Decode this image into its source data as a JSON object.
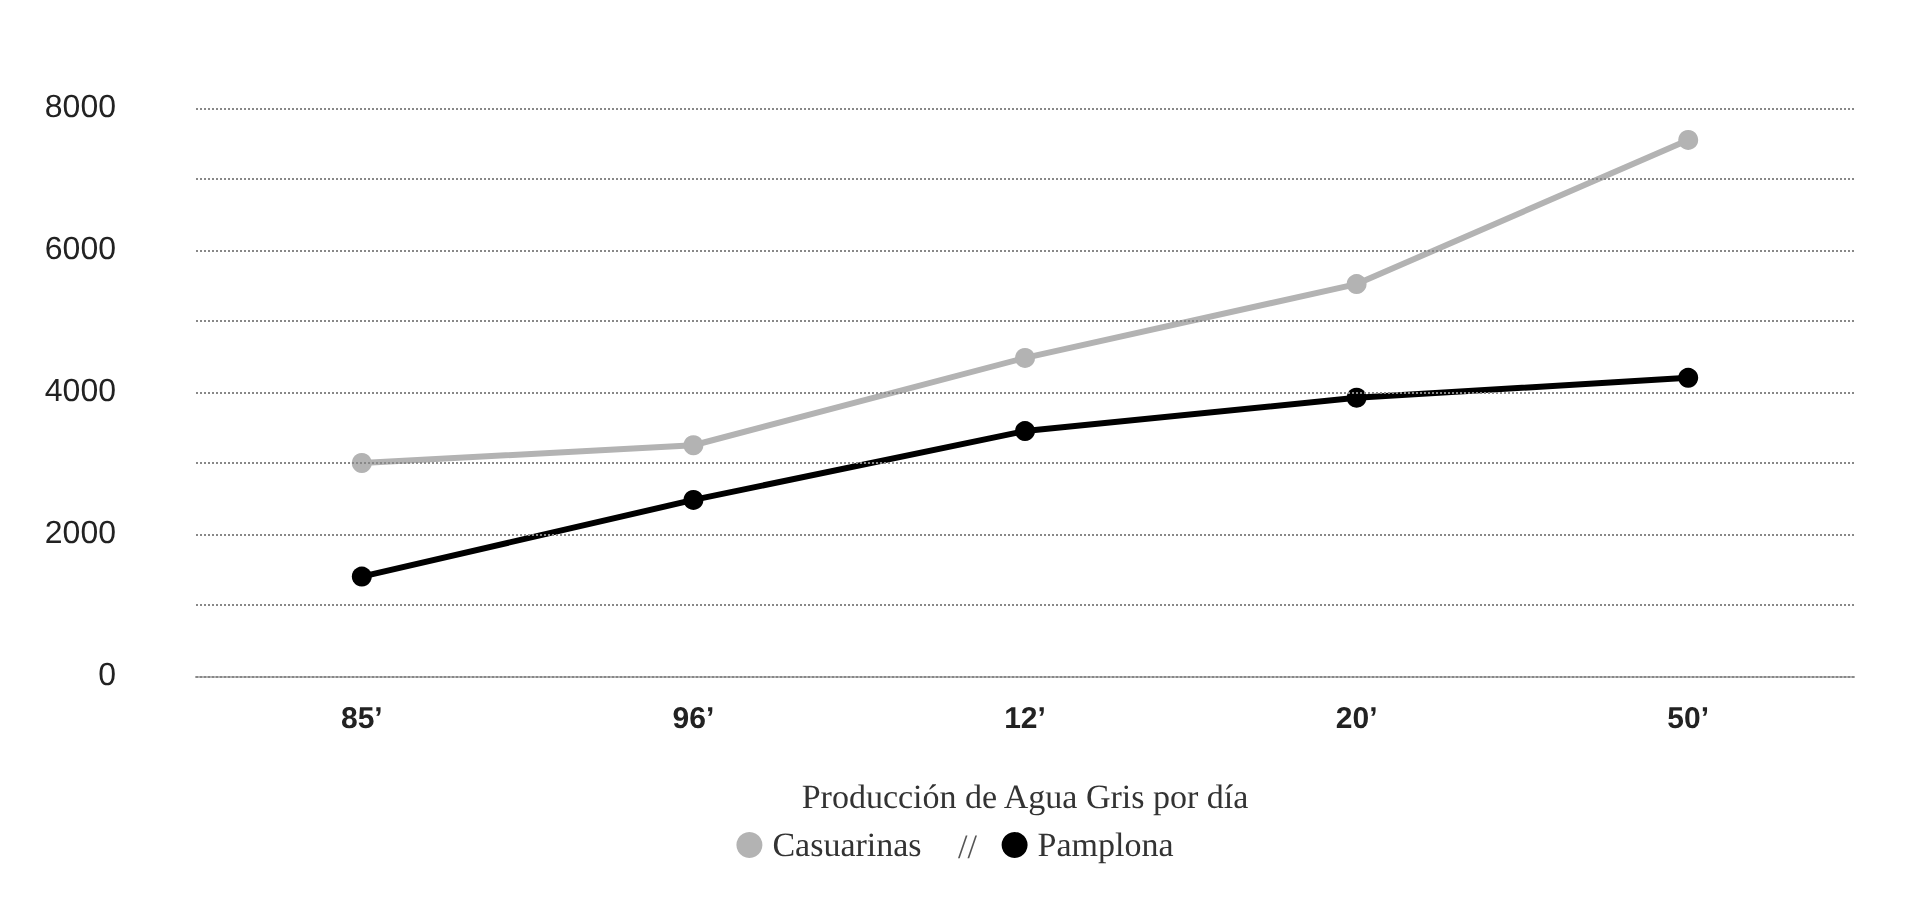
{
  "chart_data": {
    "type": "line",
    "xlabel": "Producción de Agua Gris por día",
    "categories": [
      "85’",
      "96’",
      "12’",
      "20’",
      "50’"
    ],
    "series": [
      {
        "name": "Casuarinas",
        "color": "#b3b3b3",
        "values": [
          3000,
          3250,
          4480,
          5520,
          7550
        ]
      },
      {
        "name": "Pamplona",
        "color": "#000000",
        "values": [
          1400,
          2480,
          3450,
          3920,
          4200
        ]
      }
    ],
    "annotations": [
      "//"
    ],
    "ylim": [
      0,
      8000
    ],
    "yticks": [
      0,
      {
        "value": 1000,
        "label": null
      },
      2000,
      {
        "value": 3000,
        "label": null
      },
      4000,
      {
        "value": 5000,
        "label": null
      },
      6000,
      {
        "value": 7000,
        "label": null
      },
      8000
    ],
    "grid": "y",
    "legend": "bottom",
    "marker": "circle",
    "line_style": "solid"
  }
}
